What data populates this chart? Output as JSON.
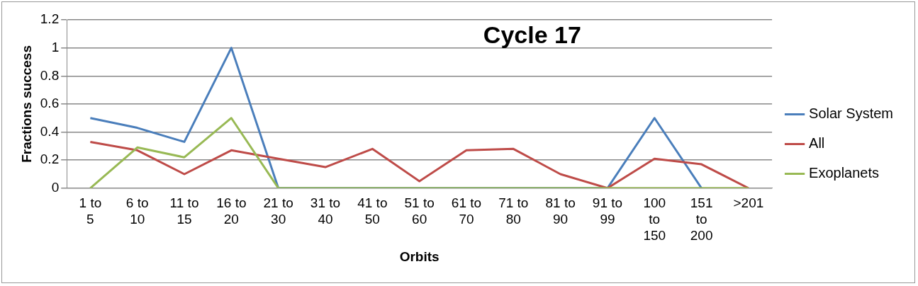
{
  "chart_data": {
    "type": "line",
    "title": "Cycle 17",
    "xlabel": "Orbits",
    "ylabel": "Fractions success",
    "categories": [
      "1 to 5",
      "6 to 10",
      "11 to 15",
      "16 to 20",
      "21 to 30",
      "31 to 40",
      "41 to 50",
      "51 to 60",
      "61 to 70",
      "71 to 80",
      "81 to 90",
      "91 to 99",
      "100 to 150",
      "151 to 200",
      ">201"
    ],
    "series": [
      {
        "name": "Solar System",
        "color": "#4a7ebb",
        "values": [
          0.5,
          0.43,
          0.33,
          1,
          0,
          0,
          0,
          0,
          0,
          0,
          0,
          0,
          0.5,
          0,
          null
        ]
      },
      {
        "name": "All",
        "color": "#be4b48",
        "values": [
          0.33,
          0.27,
          0.1,
          0.27,
          0.21,
          0.15,
          0.28,
          0.05,
          0.27,
          0.28,
          0.1,
          0,
          0.21,
          0.17,
          0
        ]
      },
      {
        "name": "Exoplanets",
        "color": "#98b954",
        "values": [
          0,
          0.29,
          0.22,
          0.5,
          0,
          0,
          0,
          0,
          0,
          0,
          0,
          0,
          0,
          0,
          0
        ]
      }
    ],
    "ylim": [
      0,
      1.2
    ],
    "yticks": [
      0,
      0.2,
      0.4,
      0.6,
      0.8,
      1,
      1.2
    ],
    "grid": "y",
    "legend": "right",
    "marker": "none",
    "line_style": "solid"
  }
}
